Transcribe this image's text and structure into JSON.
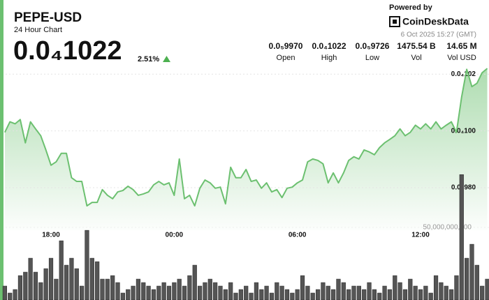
{
  "header": {
    "title": "PEPE-USD",
    "subtitle": "24 Hour Chart",
    "price": "0.0₄1022",
    "change": "2.51%",
    "powered_by": "Powered by",
    "brand": "CoinDeskData",
    "timestamp": "6 Oct 2025 15:27 (GMT)"
  },
  "stats": [
    {
      "value": "0.0₅9970",
      "label": "Open"
    },
    {
      "value": "0.0₄1022",
      "label": "High"
    },
    {
      "value": "0.0₅9726",
      "label": "Low"
    },
    {
      "value": "1475.54 B",
      "label": "Vol"
    },
    {
      "value": "14.65 M",
      "label": "Vol USD"
    }
  ],
  "chart_data": [
    {
      "type": "line",
      "color": "#6cc070",
      "grid": true,
      "categories": [
        null,
        null,
        null,
        null,
        null,
        null,
        null,
        null,
        null,
        "18:00",
        null,
        null,
        null,
        null,
        null,
        null,
        null,
        null,
        null,
        null,
        null,
        null,
        null,
        null,
        null,
        null,
        null,
        null,
        null,
        null,
        null,
        null,
        null,
        "00:00",
        null,
        null,
        null,
        null,
        null,
        null,
        null,
        null,
        null,
        null,
        null,
        null,
        null,
        null,
        null,
        null,
        null,
        null,
        null,
        null,
        null,
        null,
        null,
        "06:00",
        null,
        null,
        null,
        null,
        null,
        null,
        null,
        null,
        null,
        null,
        null,
        null,
        null,
        null,
        null,
        null,
        null,
        null,
        null,
        null,
        null,
        null,
        null,
        "12:00",
        null,
        null,
        null,
        null,
        null,
        null,
        null,
        null,
        null,
        null,
        null,
        null,
        null
      ],
      "values": [
        9.995e-06,
        1.0032e-05,
        1.0025e-05,
        1.004e-05,
        9.958e-06,
        1.0032e-05,
        1.0007e-05,
        9.983e-06,
        9.933e-06,
        9.879e-06,
        9.891e-06,
        9.921e-06,
        9.921e-06,
        9.835e-06,
        9.822e-06,
        9.822e-06,
        9.736e-06,
        9.748e-06,
        9.748e-06,
        9.793e-06,
        9.773e-06,
        9.761e-06,
        9.785e-06,
        9.79e-06,
        9.805e-06,
        9.793e-06,
        9.773e-06,
        9.778e-06,
        9.785e-06,
        9.81e-06,
        9.822e-06,
        9.81e-06,
        9.817e-06,
        9.773e-06,
        9.901e-06,
        9.761e-06,
        9.773e-06,
        9.736e-06,
        9.798e-06,
        9.827e-06,
        9.817e-06,
        9.798e-06,
        9.802e-06,
        9.743e-06,
        9.872e-06,
        9.835e-06,
        9.835e-06,
        9.864e-06,
        9.822e-06,
        9.827e-06,
        9.798e-06,
        9.817e-06,
        9.785e-06,
        9.793e-06,
        9.765e-06,
        9.798e-06,
        9.802e-06,
        9.817e-06,
        9.827e-06,
        9.891e-06,
        9.901e-06,
        9.896e-06,
        9.884e-06,
        9.817e-06,
        9.852e-06,
        9.817e-06,
        9.852e-06,
        9.896e-06,
        9.909e-06,
        9.901e-06,
        9.933e-06,
        9.926e-06,
        9.916e-06,
        9.941e-06,
        9.958e-06,
        9.97e-06,
        9.983e-06,
        1.0007e-05,
        9.983e-06,
        9.995e-06,
        1.002e-05,
        1.0007e-05,
        1.0025e-05,
        1.0007e-05,
        1.0032e-05,
        1.0007e-05,
        1.002e-05,
        1.0032e-05,
        9.995e-06,
        1.0119e-05,
        1.0217e-05,
        1.0156e-05,
        1.0168e-05,
        1.0205e-05,
        1.022e-05
      ],
      "ylim": [
        9.65e-06,
        1.024e-05
      ],
      "yticks": [
        {
          "value": 1.02e-05,
          "label": "0.0₄102"
        },
        {
          "value": 1e-05,
          "label": "0.0₄100"
        },
        {
          "value": 9.8e-06,
          "label": "0.0₅980"
        }
      ]
    },
    {
      "type": "bar",
      "color": "#555555",
      "values": [
        9600000000.0,
        4800000000.0,
        7200000000.0,
        16800000000.0,
        19200000000.0,
        28800000000.0,
        19200000000.0,
        12000000000.0,
        21600000000.0,
        28800000000.0,
        14400000000.0,
        40800000000.0,
        24000000000.0,
        28800000000.0,
        21600000000.0,
        9600000000.0,
        48000000000.0,
        28800000000.0,
        26400000000.0,
        14400000000.0,
        14400000000.0,
        16800000000.0,
        12000000000.0,
        4800000000.0,
        7200000000.0,
        9600000000.0,
        14400000000.0,
        12000000000.0,
        9600000000.0,
        7200000000.0,
        9600000000.0,
        12000000000.0,
        9600000000.0,
        12000000000.0,
        14400000000.0,
        9600000000.0,
        16800000000.0,
        24000000000.0,
        9600000000.0,
        12000000000.0,
        14400000000.0,
        12000000000.0,
        9600000000.0,
        7200000000.0,
        12000000000.0,
        4800000000.0,
        7200000000.0,
        9600000000.0,
        4800000000.0,
        12000000000.0,
        7200000000.0,
        9600000000.0,
        4800000000.0,
        12000000000.0,
        9600000000.0,
        7200000000.0,
        4800000000.0,
        7200000000.0,
        16800000000.0,
        9600000000.0,
        4800000000.0,
        7200000000.0,
        12000000000.0,
        9600000000.0,
        7200000000.0,
        14400000000.0,
        12000000000.0,
        7200000000.0,
        9600000000.0,
        9600000000.0,
        7200000000.0,
        12000000000.0,
        7200000000.0,
        4800000000.0,
        9600000000.0,
        7200000000.0,
        16800000000.0,
        12000000000.0,
        7200000000.0,
        14400000000.0,
        9600000000.0,
        7200000000.0,
        9600000000.0,
        4800000000.0,
        16800000000.0,
        12000000000.0,
        9600000000.0,
        7200000000.0,
        16800000000.0,
        86400000000.0,
        28800000000.0,
        38400000000.0,
        24000000000.0,
        9600000000.0,
        14400000000.0
      ],
      "ylim": [
        0,
        160000000000.0
      ],
      "yticks": [
        {
          "value": 50000000000.0,
          "label": "50,000,000,000"
        }
      ]
    }
  ]
}
